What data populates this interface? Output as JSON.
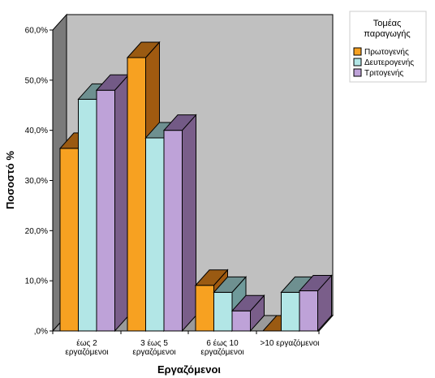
{
  "chart_data": {
    "type": "bar",
    "style": "3d-clustered",
    "xlabel": "Εργαζόμενοι",
    "ylabel": "Ποσοστό %",
    "ylim": [
      0,
      60
    ],
    "yticks": [
      "60,0%",
      "50,0%",
      "40,0%",
      "30,0%",
      "20,0%",
      "10,0%",
      ",0%"
    ],
    "categories": [
      [
        "έως 2",
        "εργαζόμενοι"
      ],
      [
        "3 έως 5",
        "εργαζόμενοι"
      ],
      [
        "6 έως 10",
        "εργαζόμενοι"
      ],
      [
        ">10 εργαζόμενοι"
      ]
    ],
    "legend_title": [
      "Τομέας",
      "παραγωγής"
    ],
    "legend_position": "top-right",
    "series": [
      {
        "name": "Πρωτογενής",
        "values": [
          36.4,
          54.5,
          9.1,
          0.0
        ],
        "color": "#f7a121",
        "side": "#a05a10",
        "top": "#9a5a12"
      },
      {
        "name": "Δευτερογενής",
        "values": [
          46.2,
          38.5,
          7.7,
          7.7
        ],
        "color": "#b2e6e6",
        "side": "#6f9a9a",
        "top": "#6e9090"
      },
      {
        "name": "Τριτογενής",
        "values": [
          48.0,
          40.0,
          4.0,
          8.0
        ],
        "color": "#bea2d8",
        "side": "#7a5e8a",
        "top": "#735a86"
      }
    ],
    "grid": false,
    "wall_color": "#c0c0c0",
    "side_wall_color": "#7a7a7a"
  }
}
